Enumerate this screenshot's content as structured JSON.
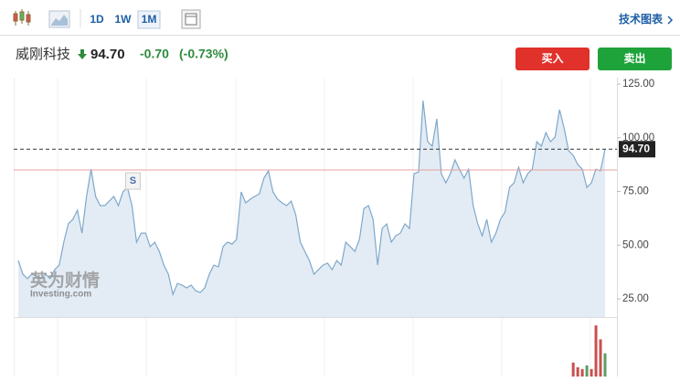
{
  "toolbar": {
    "periods": [
      "1D",
      "1W",
      "1M"
    ],
    "active": 2,
    "technical": "技术图表"
  },
  "quote": {
    "name": "威刚科技",
    "price": "94.70",
    "change": "-0.70",
    "change_pct": "(-0.73%)"
  },
  "buttons": {
    "buy": "买入",
    "sell": "卖出"
  },
  "chart_data": {
    "type": "area",
    "color": "#7fa8ca",
    "fill": "#e3ecf5",
    "values": [
      42.9,
      36.5,
      34.4,
      36.5,
      35.6,
      34.4,
      36.5,
      34.4,
      38.6,
      40.7,
      51.4,
      59.9,
      62.0,
      66.3,
      55.6,
      72.7,
      85.4,
      72.7,
      68.4,
      68.4,
      70.5,
      72.7,
      68.4,
      74.8,
      76.9,
      68.4,
      51.4,
      55.6,
      55.6,
      49.3,
      51.4,
      47.1,
      40.7,
      36.5,
      27.1,
      32.2,
      31.4,
      30.1,
      31.4,
      28.8,
      28.0,
      30.1,
      36.5,
      40.7,
      39.9,
      49.3,
      51.4,
      50.5,
      52.7,
      74.8,
      69.7,
      71.4,
      72.7,
      73.9,
      81.2,
      84.6,
      74.8,
      71.4,
      69.7,
      68.4,
      70.5,
      64.1,
      51.4,
      47.1,
      42.9,
      36.5,
      38.6,
      40.7,
      41.6,
      38.6,
      42.9,
      40.7,
      51.4,
      49.3,
      47.1,
      52.7,
      67.1,
      68.4,
      62.0,
      40.7,
      57.8,
      59.9,
      51.4,
      54.4,
      55.6,
      59.9,
      57.8,
      83.3,
      84.1,
      117.3,
      98.2,
      96.1,
      108.8,
      83.3,
      79.0,
      83.3,
      89.7,
      85.4,
      81.2,
      85.4,
      68.4,
      59.9,
      54.4,
      62.0,
      51.4,
      55.6,
      62.0,
      65.4,
      76.9,
      79.0,
      86.3,
      79.0,
      83.3,
      85.4,
      98.2,
      96.1,
      102.4,
      98.2,
      100.3,
      113.1,
      104.6,
      93.9,
      91.8,
      87.6,
      85.4,
      76.9,
      79.0,
      85.4,
      84.6,
      94.7
    ],
    "ylim": [
      16.5,
      128
    ],
    "yticks": [
      {
        "value": 25,
        "label": "25.00"
      },
      {
        "value": 50,
        "label": "50.00"
      },
      {
        "value": 75,
        "label": "75.00"
      },
      {
        "value": 100,
        "label": "100.00"
      },
      {
        "value": 125,
        "label": "125.00"
      }
    ],
    "price_line": {
      "value": 94.7,
      "label": "94.70"
    },
    "reference_line": 85.0,
    "annotation": {
      "label": "S",
      "index": 24
    },
    "watermark": {
      "brand": "英为财情",
      "site": "Investing.com"
    },
    "volume": {
      "ylim": [
        0,
        60
      ],
      "values": [
        null,
        null,
        null,
        null,
        null,
        null,
        null,
        null,
        null,
        null,
        null,
        null,
        null,
        null,
        null,
        null,
        null,
        null,
        null,
        null,
        null,
        null,
        null,
        null,
        null,
        null,
        null,
        null,
        null,
        null,
        null,
        null,
        null,
        null,
        null,
        null,
        null,
        null,
        null,
        null,
        null,
        null,
        null,
        null,
        null,
        null,
        null,
        null,
        null,
        null,
        null,
        null,
        null,
        null,
        null,
        null,
        null,
        null,
        null,
        null,
        null,
        null,
        null,
        null,
        null,
        null,
        null,
        null,
        null,
        null,
        null,
        null,
        null,
        null,
        null,
        null,
        null,
        null,
        null,
        null,
        null,
        null,
        null,
        null,
        null,
        null,
        null,
        null,
        null,
        null,
        null,
        null,
        null,
        null,
        null,
        null,
        null,
        null,
        null,
        null,
        null,
        null,
        null,
        null,
        null,
        null,
        null,
        null,
        null,
        null,
        null,
        null,
        null,
        null,
        null,
        null,
        null,
        null,
        null,
        null,
        null,
        null,
        15,
        10,
        8,
        12,
        8,
        55,
        40,
        25
      ],
      "colors": [
        "#c94f4f",
        "#c94f4f",
        "#c94f4f",
        "#5a9e63",
        "#c94f4f",
        "#c94f4f",
        "#c94f4f",
        "#5a9e63"
      ]
    }
  }
}
